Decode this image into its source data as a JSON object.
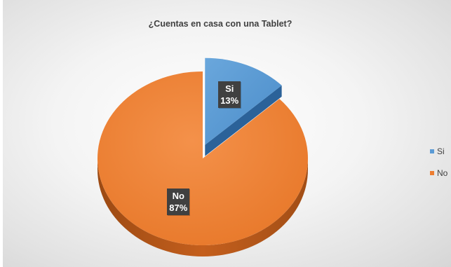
{
  "chart_data": {
    "type": "pie",
    "title": "¿Cuentas en casa con una Tablet?",
    "categories": [
      "Si",
      "No"
    ],
    "values": [
      13,
      87
    ],
    "value_labels": [
      "13%",
      "87%"
    ],
    "colors": [
      "#5b9bd5",
      "#ed7d31"
    ],
    "exploded": "Si",
    "style": "3d",
    "legend_position": "right"
  }
}
